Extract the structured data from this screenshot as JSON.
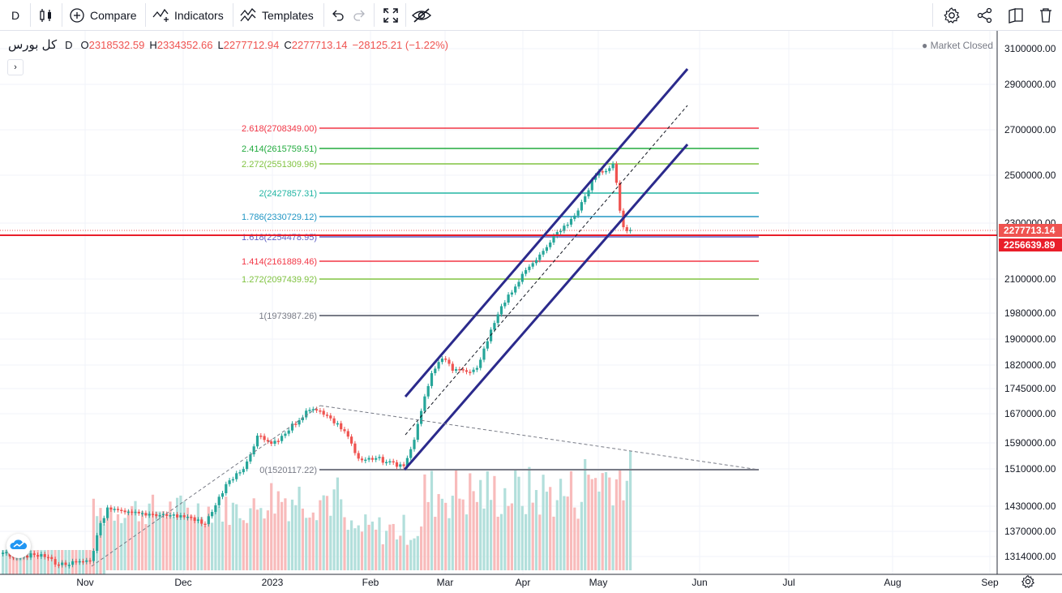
{
  "toolbar": {
    "resolution": "D",
    "compare_label": "Compare",
    "indicators_label": "Indicators",
    "templates_label": "Templates"
  },
  "legend": {
    "symbol": "کل بورس",
    "resolution": "D",
    "open_label": "O",
    "open": "2318532.59",
    "high_label": "H",
    "high": "2334352.66",
    "low_label": "L",
    "low": "2277712.94",
    "close_label": "C",
    "close": "2277713.14",
    "change": "−28125.21 (−1.22%)"
  },
  "market_status": "Market Closed",
  "price_axis": {
    "ticks": [
      "3100000.00",
      "2900000.00",
      "2700000.00",
      "2500000.00",
      "2300000.00",
      "2100000.00",
      "1980000.00",
      "1900000.00",
      "1820000.00",
      "1745000.00",
      "1670000.00",
      "1590000.00",
      "1510000.00",
      "1430000.00",
      "1370000.00",
      "1314000.00"
    ],
    "last_price": "2277713.14",
    "line_price": "2256639.89",
    "last_price_color": "#ef5350",
    "line_price_color": "#e91e2a"
  },
  "time_axis": {
    "labels": [
      "Nov",
      "Dec",
      "2023",
      "Feb",
      "Mar",
      "Apr",
      "May",
      "Jun",
      "Jul",
      "Aug",
      "Sep"
    ]
  },
  "fib_levels": [
    {
      "label": "2.618(2708349.00)",
      "color": "#f23645"
    },
    {
      "label": "2.414(2615759.51)",
      "color": "#22ab3f"
    },
    {
      "label": "2.272(2551309.96)",
      "color": "#81c341"
    },
    {
      "label": "2(2427857.31)",
      "color": "#22b5a3"
    },
    {
      "label": "1.786(2330729.12)",
      "color": "#2196c4"
    },
    {
      "label": "1.618(2254478.95)",
      "color": "#5e5ec2"
    },
    {
      "label": "1.414(2161889.46)",
      "color": "#f23645"
    },
    {
      "label": "1.272(2097439.92)",
      "color": "#81c341"
    },
    {
      "label": "1(1973987.26)",
      "color": "#787b86"
    },
    {
      "label": "0(1520117.22)",
      "color": "#787b86"
    }
  ],
  "colors": {
    "up": "#26a69a",
    "down": "#ef5350",
    "channel": "#2b2a8c",
    "accent": "#2962ff"
  }
}
